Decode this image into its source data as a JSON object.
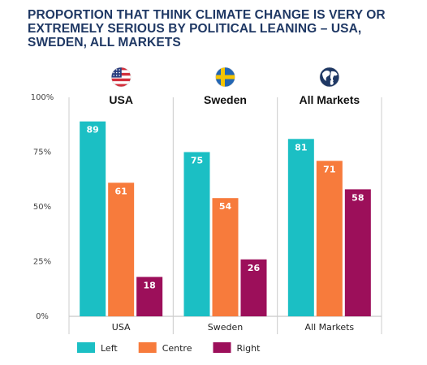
{
  "title": "PROPORTION THAT THINK CLIMATE CHANGE IS VERY OR EXTREMELY SERIOUS BY POLITICAL LEANING – USA, SWEDEN, ALL MARKETS",
  "colors": {
    "Left": "#1bbfc4",
    "Centre": "#f77b3c",
    "Right": "#9c0f5a",
    "title": "#1f3864",
    "grid": "#cccccc"
  },
  "chart_data": {
    "type": "bar",
    "categories": [
      "USA",
      "Sweden",
      "All Markets"
    ],
    "panel_titles": [
      "USA",
      "Sweden",
      "All Markets"
    ],
    "panel_icons": [
      "us-flag-icon",
      "sweden-flag-icon",
      "globe-icon"
    ],
    "series": [
      {
        "name": "Left",
        "values": [
          89,
          75,
          81
        ]
      },
      {
        "name": "Centre",
        "values": [
          61,
          54,
          71
        ]
      },
      {
        "name": "Right",
        "values": [
          18,
          26,
          58
        ]
      }
    ],
    "yticks": [
      "100%",
      "75%",
      "50%",
      "25%",
      "0%"
    ],
    "ylim": [
      0,
      100
    ],
    "legend_position": "bottom-left"
  }
}
